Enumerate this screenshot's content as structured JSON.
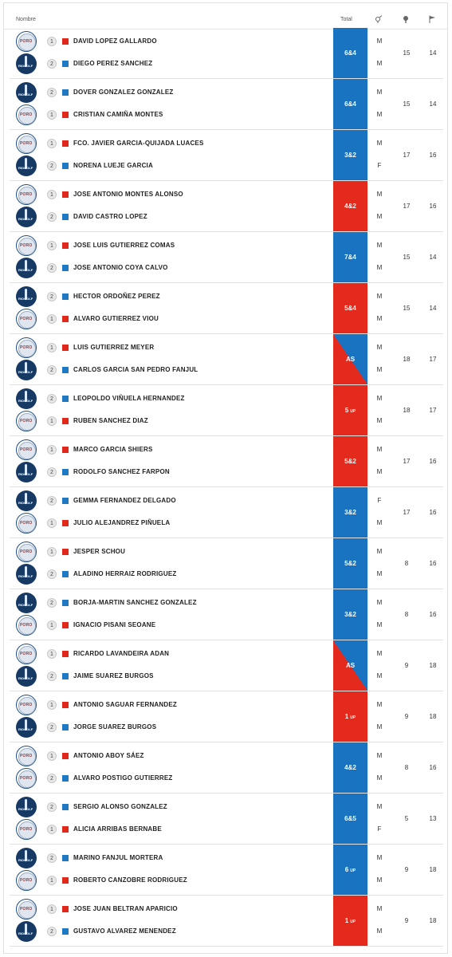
{
  "header": {
    "nombre": "Nombre",
    "total": "Total",
    "sex_icon": "gender-icon",
    "ball_icon": "golf-ball-icon",
    "flag_icon": "flag-icon"
  },
  "matches": [
    {
      "p1": {
        "num": "1",
        "color": "red",
        "club": "poro",
        "name": "DAVID LOPEZ GALLARDO",
        "sex": "M"
      },
      "p2": {
        "num": "2",
        "color": "blue",
        "club": "golf",
        "name": "DIEGO PEREZ SANCHEZ",
        "sex": "M"
      },
      "total": "6&4",
      "up": "",
      "result": "blue",
      "hcp": "15",
      "holes": "14"
    },
    {
      "p1": {
        "num": "2",
        "color": "blue",
        "club": "golf",
        "name": "DOVER GONZALEZ GONZALEZ",
        "sex": "M"
      },
      "p2": {
        "num": "1",
        "color": "red",
        "club": "poro",
        "name": "CRISTIAN CAMIÑA MONTES",
        "sex": "M"
      },
      "total": "6&4",
      "up": "",
      "result": "blue",
      "hcp": "15",
      "holes": "14"
    },
    {
      "p1": {
        "num": "1",
        "color": "red",
        "club": "poro",
        "name": "FCO. JAVIER GARCIA-QUIJADA LUACES",
        "sex": "M"
      },
      "p2": {
        "num": "2",
        "color": "blue",
        "club": "golf",
        "name": "NORENA LUEJE GARCIA",
        "sex": "F"
      },
      "total": "3&2",
      "up": "",
      "result": "blue",
      "hcp": "17",
      "holes": "16"
    },
    {
      "p1": {
        "num": "1",
        "color": "red",
        "club": "poro",
        "name": "JOSE ANTONIO MONTES ALONSO",
        "sex": "M"
      },
      "p2": {
        "num": "2",
        "color": "blue",
        "club": "golf",
        "name": "DAVID CASTRO LOPEZ",
        "sex": "M"
      },
      "total": "4&2",
      "up": "",
      "result": "red",
      "hcp": "17",
      "holes": "16"
    },
    {
      "p1": {
        "num": "1",
        "color": "red",
        "club": "poro",
        "name": "JOSE LUIS GUTIERREZ COMAS",
        "sex": "M"
      },
      "p2": {
        "num": "2",
        "color": "blue",
        "club": "golf",
        "name": "JOSE ANTONIO COYA CALVO",
        "sex": "M"
      },
      "total": "7&4",
      "up": "",
      "result": "blue",
      "hcp": "15",
      "holes": "14"
    },
    {
      "p1": {
        "num": "2",
        "color": "blue",
        "club": "golf",
        "name": "HECTOR ORDOÑEZ PEREZ",
        "sex": "M"
      },
      "p2": {
        "num": "1",
        "color": "red",
        "club": "poro",
        "name": "ALVARO GUTIERREZ VIOU",
        "sex": "M"
      },
      "total": "5&4",
      "up": "",
      "result": "red",
      "hcp": "15",
      "holes": "14"
    },
    {
      "p1": {
        "num": "1",
        "color": "red",
        "club": "poro",
        "name": "LUIS GUTIERREZ MEYER",
        "sex": "M"
      },
      "p2": {
        "num": "2",
        "color": "blue",
        "club": "golf",
        "name": "CARLOS GARCIA SAN PEDRO FANJUL",
        "sex": "M"
      },
      "total": "AS",
      "up": "",
      "result": "as",
      "hcp": "18",
      "holes": "17"
    },
    {
      "p1": {
        "num": "2",
        "color": "blue",
        "club": "golf",
        "name": "LEOPOLDO VIÑUELA HERNANDEZ",
        "sex": "M"
      },
      "p2": {
        "num": "1",
        "color": "red",
        "club": "poro",
        "name": "RUBEN SANCHEZ DIAZ",
        "sex": "M"
      },
      "total": "5",
      "up": "UP",
      "result": "red",
      "hcp": "18",
      "holes": "17"
    },
    {
      "p1": {
        "num": "1",
        "color": "red",
        "club": "poro",
        "name": "MARCO GARCIA SHIERS",
        "sex": "M"
      },
      "p2": {
        "num": "2",
        "color": "blue",
        "club": "golf",
        "name": "RODOLFO SANCHEZ FARPON",
        "sex": "M"
      },
      "total": "5&2",
      "up": "",
      "result": "red",
      "hcp": "17",
      "holes": "16"
    },
    {
      "p1": {
        "num": "2",
        "color": "blue",
        "club": "golf",
        "name": "GEMMA FERNANDEZ DELGADO",
        "sex": "F"
      },
      "p2": {
        "num": "1",
        "color": "red",
        "club": "poro",
        "name": "JULIO ALEJANDREZ PIÑUELA",
        "sex": "M"
      },
      "total": "3&2",
      "up": "",
      "result": "blue",
      "hcp": "17",
      "holes": "16"
    },
    {
      "p1": {
        "num": "1",
        "color": "red",
        "club": "poro",
        "name": "JESPER SCHOU",
        "sex": "M"
      },
      "p2": {
        "num": "2",
        "color": "blue",
        "club": "golf",
        "name": "ALADINO HERRAIZ RODRIGUEZ",
        "sex": "M"
      },
      "total": "5&2",
      "up": "",
      "result": "blue",
      "hcp": "8",
      "holes": "16"
    },
    {
      "p1": {
        "num": "2",
        "color": "blue",
        "club": "golf",
        "name": "BORJA-MARTIN SANCHEZ GONZALEZ",
        "sex": "M"
      },
      "p2": {
        "num": "1",
        "color": "red",
        "club": "poro",
        "name": "IGNACIO PISANI SEOANE",
        "sex": "M"
      },
      "total": "3&2",
      "up": "",
      "result": "blue",
      "hcp": "8",
      "holes": "16"
    },
    {
      "p1": {
        "num": "1",
        "color": "red",
        "club": "poro",
        "name": "RICARDO LAVANDEIRA ADAN",
        "sex": "M"
      },
      "p2": {
        "num": "2",
        "color": "blue",
        "club": "golf",
        "name": "JAIME SUAREZ BURGOS",
        "sex": "M"
      },
      "total": "AS",
      "up": "",
      "result": "as2",
      "hcp": "9",
      "holes": "18"
    },
    {
      "p1": {
        "num": "1",
        "color": "red",
        "club": "poro",
        "name": "ANTONIO SAGUAR FERNANDEZ",
        "sex": "M"
      },
      "p2": {
        "num": "2",
        "color": "blue",
        "club": "golf",
        "name": "JORGE SUAREZ BURGOS",
        "sex": "M"
      },
      "total": "1",
      "up": "UP",
      "result": "red",
      "hcp": "9",
      "holes": "18"
    },
    {
      "p1": {
        "num": "1",
        "color": "red",
        "club": "poro",
        "name": "ANTONIO ABOY SÁEZ",
        "sex": "M"
      },
      "p2": {
        "num": "2",
        "color": "blue",
        "club": "poro",
        "name": "ALVARO POSTIGO GUTIERREZ",
        "sex": "M"
      },
      "total": "4&2",
      "up": "",
      "result": "blue",
      "hcp": "8",
      "holes": "16"
    },
    {
      "p1": {
        "num": "2",
        "color": "blue",
        "club": "golf",
        "name": "SERGIO ALONSO GONZALEZ",
        "sex": "M"
      },
      "p2": {
        "num": "1",
        "color": "red",
        "club": "poro",
        "name": "ALICIA ARRIBAS BERNABE",
        "sex": "F"
      },
      "total": "6&5",
      "up": "",
      "result": "blue",
      "hcp": "5",
      "holes": "13"
    },
    {
      "p1": {
        "num": "2",
        "color": "blue",
        "club": "golf",
        "name": "MARINO FANJUL MORTERA",
        "sex": "M"
      },
      "p2": {
        "num": "1",
        "color": "red",
        "club": "poro",
        "name": "ROBERTO CANZOBRE RODRIGUEZ",
        "sex": "M"
      },
      "total": "6",
      "up": "UP",
      "result": "blue",
      "hcp": "9",
      "holes": "18"
    },
    {
      "p1": {
        "num": "1",
        "color": "red",
        "club": "poro",
        "name": "JOSE JUAN BELTRAN APARICIO",
        "sex": "M"
      },
      "p2": {
        "num": "2",
        "color": "blue",
        "club": "golf",
        "name": "GUSTAVO ALVAREZ MENENDEZ",
        "sex": "M"
      },
      "total": "1",
      "up": "UP",
      "result": "red",
      "hcp": "9",
      "holes": "18"
    }
  ]
}
